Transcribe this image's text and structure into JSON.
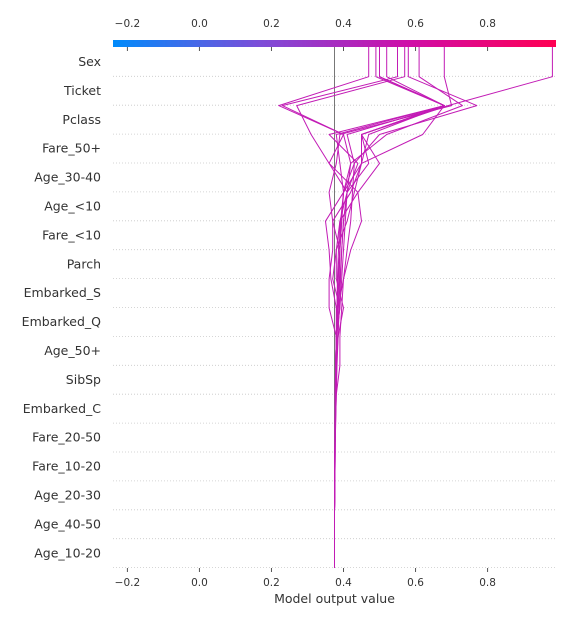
{
  "chart_data": {
    "type": "line",
    "xlabel": "Model output value",
    "xlim": [
      -0.24,
      0.99
    ],
    "xticks": [
      -0.2,
      0.0,
      0.2,
      0.4,
      0.6,
      0.8
    ],
    "tick_labels": [
      "−0.2",
      "0.0",
      "0.2",
      "0.4",
      "0.6",
      "0.8"
    ],
    "base_value": 0.375,
    "features": [
      "Sex",
      "Ticket",
      "Pclass",
      "Fare_50+",
      "Age_30-40",
      "Age_<10",
      "Fare_<10",
      "Parch",
      "Embarked_S",
      "Embarked_Q",
      "Age_50+",
      "SibSp",
      "Embarked_C",
      "Fare_20-50",
      "Fare_10-20",
      "Age_20-30",
      "Age_40-50",
      "Age_10-20"
    ],
    "colorbar": {
      "colors": [
        "#008bfb",
        "#7d4dd8",
        "#cf0da8",
        "#ff0052"
      ]
    },
    "line_color": "#c21bb5",
    "grid": true,
    "series": [
      {
        "values": [
          0.375,
          0.375,
          0.375,
          0.376,
          0.376,
          0.377,
          0.378,
          0.378,
          0.38,
          0.382,
          0.383,
          0.386,
          0.39,
          0.41,
          0.47,
          0.45,
          0.69,
          0.98,
          0.98
        ]
      },
      {
        "values": [
          0.375,
          0.375,
          0.375,
          0.376,
          0.377,
          0.378,
          0.38,
          0.382,
          0.385,
          0.388,
          0.392,
          0.395,
          0.4,
          0.41,
          0.44,
          0.36,
          0.68,
          0.5,
          0.5
        ]
      },
      {
        "values": [
          0.375,
          0.375,
          0.375,
          0.376,
          0.377,
          0.378,
          0.38,
          0.39,
          0.39,
          0.395,
          0.4,
          0.41,
          0.42,
          0.425,
          0.43,
          0.5,
          0.77,
          0.58,
          0.58
        ]
      },
      {
        "values": [
          0.375,
          0.375,
          0.375,
          0.376,
          0.376,
          0.377,
          0.378,
          0.38,
          0.382,
          0.385,
          0.39,
          0.395,
          0.4,
          0.41,
          0.42,
          0.52,
          0.73,
          0.61,
          0.61
        ]
      },
      {
        "values": [
          0.375,
          0.375,
          0.375,
          0.376,
          0.376,
          0.377,
          0.378,
          0.38,
          0.38,
          0.39,
          0.395,
          0.4,
          0.405,
          0.41,
          0.36,
          0.31,
          0.27,
          0.57,
          0.57
        ]
      },
      {
        "values": [
          0.375,
          0.375,
          0.375,
          0.376,
          0.376,
          0.377,
          0.378,
          0.38,
          0.38,
          0.382,
          0.385,
          0.39,
          0.395,
          0.4,
          0.42,
          0.4,
          0.23,
          0.55,
          0.55
        ]
      },
      {
        "values": [
          0.375,
          0.375,
          0.375,
          0.376,
          0.376,
          0.376,
          0.377,
          0.378,
          0.38,
          0.385,
          0.4,
          0.42,
          0.45,
          0.44,
          0.36,
          0.4,
          0.22,
          0.47,
          0.47
        ]
      },
      {
        "values": [
          0.375,
          0.375,
          0.375,
          0.375,
          0.376,
          0.376,
          0.377,
          0.378,
          0.38,
          0.36,
          0.36,
          0.37,
          0.37,
          0.42,
          0.45,
          0.62,
          0.68,
          0.49,
          0.49
        ]
      },
      {
        "values": [
          0.375,
          0.375,
          0.375,
          0.376,
          0.376,
          0.377,
          0.378,
          0.378,
          0.38,
          0.39,
          0.37,
          0.38,
          0.41,
          0.43,
          0.45,
          0.47,
          0.68,
          0.52,
          0.52
        ]
      },
      {
        "values": [
          0.375,
          0.375,
          0.375,
          0.375,
          0.376,
          0.376,
          0.377,
          0.378,
          0.38,
          0.38,
          0.365,
          0.36,
          0.35,
          0.4,
          0.45,
          0.45,
          0.68,
          0.5,
          0.5
        ]
      },
      {
        "values": [
          0.375,
          0.375,
          0.375,
          0.376,
          0.376,
          0.377,
          0.378,
          0.38,
          0.385,
          0.4,
          0.38,
          0.38,
          0.39,
          0.44,
          0.5,
          0.45,
          0.68,
          0.5,
          0.5
        ]
      },
      {
        "values": [
          0.375,
          0.375,
          0.375,
          0.376,
          0.376,
          0.377,
          0.378,
          0.378,
          0.38,
          0.383,
          0.385,
          0.39,
          0.395,
          0.4,
          0.39,
          0.38,
          0.68,
          0.5,
          0.5
        ]
      },
      {
        "values": [
          0.375,
          0.375,
          0.375,
          0.376,
          0.377,
          0.377,
          0.378,
          0.38,
          0.38,
          0.382,
          0.385,
          0.39,
          0.37,
          0.36,
          0.38,
          0.39,
          0.7,
          0.68,
          0.68
        ]
      },
      {
        "values": [
          0.375,
          0.375,
          0.375,
          0.375,
          0.376,
          0.377,
          0.378,
          0.38,
          0.382,
          0.385,
          0.388,
          0.39,
          0.392,
          0.4,
          0.43,
          0.41,
          0.68,
          0.5,
          0.5
        ]
      }
    ]
  }
}
